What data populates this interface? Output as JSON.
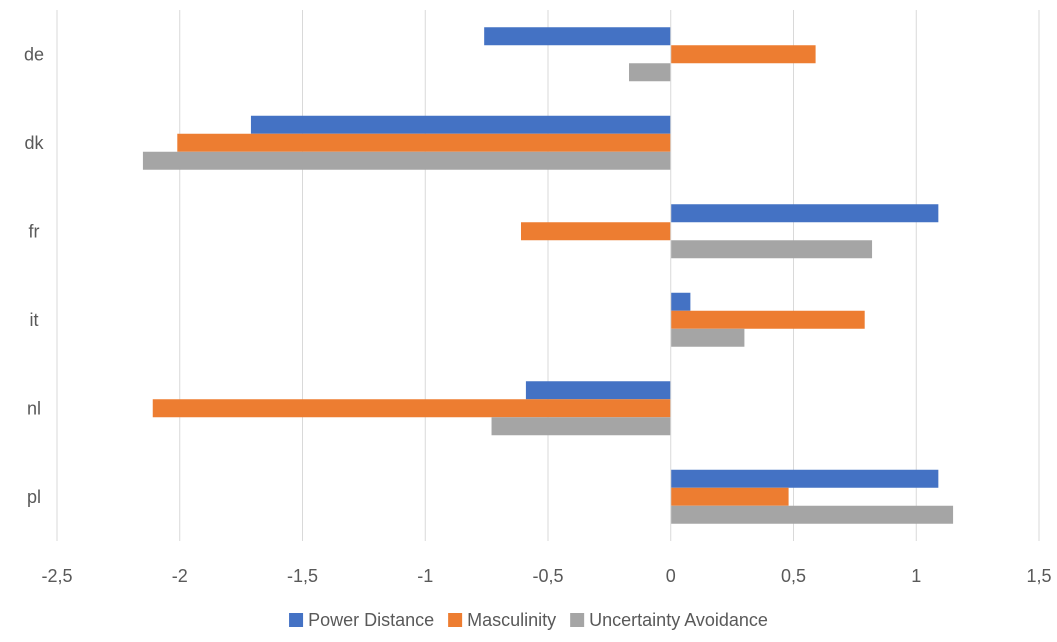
{
  "chart_data": {
    "type": "bar",
    "orientation": "horizontal",
    "categories": [
      "de",
      "dk",
      "fr",
      "it",
      "nl",
      "pl"
    ],
    "series": [
      {
        "name": "Power Distance",
        "color": "#4472C4",
        "values": [
          -0.76,
          -1.71,
          1.09,
          0.08,
          -0.59,
          1.09
        ]
      },
      {
        "name": "Masculinity",
        "color": "#ED7D31",
        "values": [
          0.59,
          -2.01,
          -0.61,
          0.79,
          -2.11,
          0.48
        ]
      },
      {
        "name": "Uncertainty Avoidance",
        "color": "#A5A5A5",
        "values": [
          -0.17,
          -2.15,
          0.82,
          0.3,
          -0.73,
          1.15
        ]
      }
    ],
    "x_ticks": [
      -2.5,
      -2,
      -1.5,
      -1,
      -0.5,
      0,
      0.5,
      1,
      1.5
    ],
    "x_tick_labels": [
      "-2,5",
      "-2",
      "-1,5",
      "-1",
      "-0,5",
      "0",
      "0,5",
      "1",
      "1,5"
    ],
    "xlim": [
      -2.5,
      1.5
    ],
    "grid": "vertical",
    "legend_position": "bottom",
    "title": "",
    "xlabel": "",
    "ylabel": ""
  }
}
